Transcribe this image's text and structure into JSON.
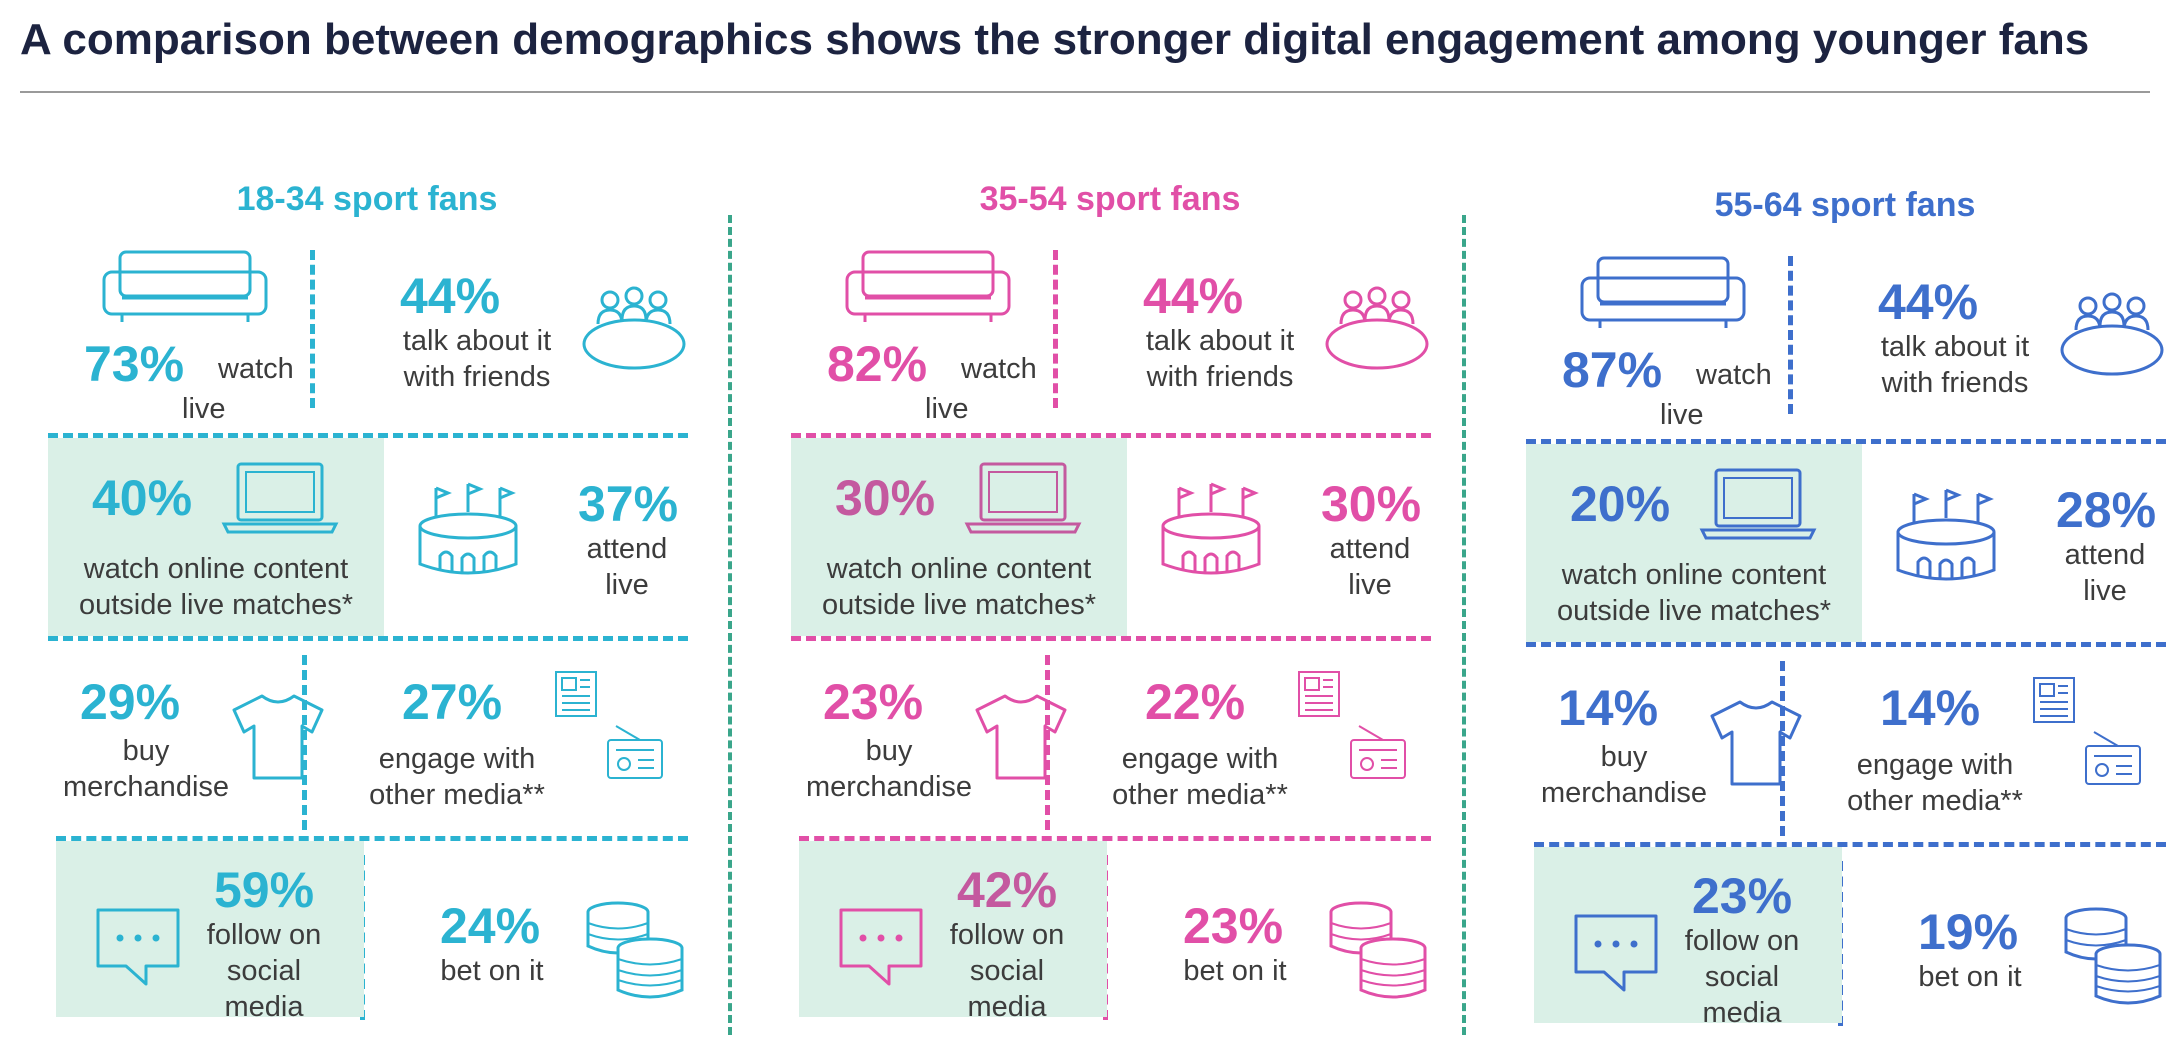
{
  "title": "A comparison between demographics shows the stronger digital engagement among younger fans",
  "labels": {
    "watch": "watch",
    "live": "live",
    "talk_1": "talk about it",
    "talk_2": "with friends",
    "online_1": "watch online content",
    "online_2": "outside live matches*",
    "attend": "attend",
    "buy": "buy",
    "merch": "merchandise",
    "engage_1": "engage with",
    "engage_2": "other media**",
    "follow_1": "follow on",
    "follow_2": "social",
    "follow_3": "media",
    "bet": "bet on it"
  },
  "panels": [
    {
      "heading": "18-34 sport fans",
      "color": "#2bb3d1",
      "stats": {
        "watch_live": "73%",
        "talk": "44%",
        "online": "40%",
        "attend": "37%",
        "buy": "29%",
        "engage": "27%",
        "social": "59%",
        "bet": "24%"
      }
    },
    {
      "heading": "35-54 sport fans",
      "color": "#e14fa7",
      "stats": {
        "watch_live": "82%",
        "talk": "44%",
        "online": "30%",
        "attend": "30%",
        "buy": "23%",
        "engage": "22%",
        "social": "42%",
        "bet": "23%"
      }
    },
    {
      "heading": "55-64 sport fans",
      "color": "#3e6fcc",
      "stats": {
        "watch_live": "87%",
        "talk": "44%",
        "online": "20%",
        "attend": "28%",
        "buy": "14%",
        "engage": "14%",
        "social": "23%",
        "bet": "19%"
      }
    }
  ],
  "highlight_color": "#daf0e7",
  "highlight_text_colors": [
    "#2bb3d1",
    "#c4599f",
    "#3e6fcc"
  ],
  "icons": [
    "sofa-icon",
    "meeting-table-icon",
    "laptop-icon",
    "stadium-icon",
    "tshirt-icon",
    "newspaper-icon",
    "radio-icon",
    "chat-bubble-icon",
    "coins-icon"
  ]
}
